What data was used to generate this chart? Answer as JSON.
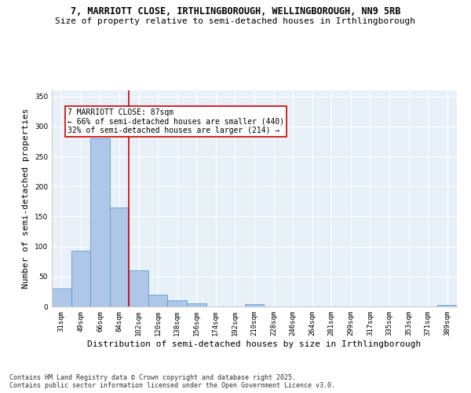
{
  "title_line1": "7, MARRIOTT CLOSE, IRTHLINGBOROUGH, WELLINGBOROUGH, NN9 5RB",
  "title_line2": "Size of property relative to semi-detached houses in Irthlingborough",
  "xlabel": "Distribution of semi-detached houses by size in Irthlingborough",
  "ylabel": "Number of semi-detached properties",
  "categories": [
    "31sqm",
    "49sqm",
    "66sqm",
    "84sqm",
    "102sqm",
    "120sqm",
    "138sqm",
    "156sqm",
    "174sqm",
    "192sqm",
    "210sqm",
    "228sqm",
    "246sqm",
    "264sqm",
    "281sqm",
    "299sqm",
    "317sqm",
    "335sqm",
    "353sqm",
    "371sqm",
    "389sqm"
  ],
  "values": [
    30,
    93,
    280,
    165,
    60,
    20,
    10,
    5,
    0,
    0,
    4,
    0,
    0,
    0,
    0,
    0,
    0,
    0,
    0,
    0,
    3
  ],
  "bar_color": "#aec6e8",
  "bar_edge_color": "#5a9fd4",
  "vline_x": 3.5,
  "vline_color": "#cc0000",
  "annotation_title": "7 MARRIOTT CLOSE: 87sqm",
  "annotation_line2": "← 66% of semi-detached houses are smaller (440)",
  "annotation_line3": "32% of semi-detached houses are larger (214) →",
  "annotation_box_color": "#cc0000",
  "annotation_bg": "#ffffff",
  "ylim": [
    0,
    360
  ],
  "yticks": [
    0,
    50,
    100,
    150,
    200,
    250,
    300,
    350
  ],
  "background_color": "#e8f0f8",
  "plot_bg": "#e8f0f8",
  "footer": "Contains HM Land Registry data © Crown copyright and database right 2025.\nContains public sector information licensed under the Open Government Licence v3.0.",
  "title_fontsize": 8.5,
  "subtitle_fontsize": 8,
  "xlabel_fontsize": 8,
  "ylabel_fontsize": 8,
  "footer_fontsize": 6,
  "tick_fontsize": 6.5,
  "ann_fontsize": 7
}
